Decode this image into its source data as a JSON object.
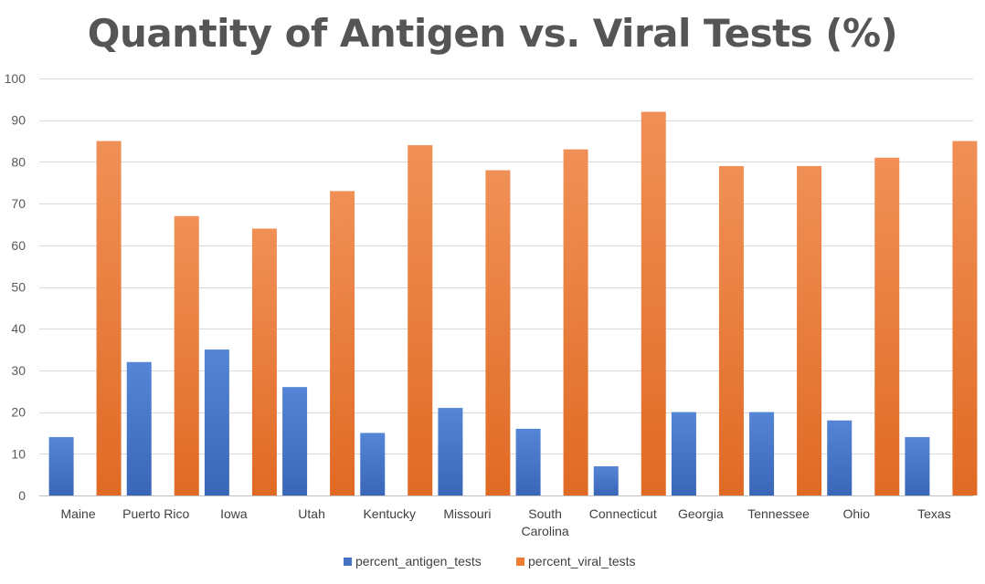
{
  "chart_data": {
    "type": "bar",
    "title": "Quantity of Antigen vs. Viral Tests (%)",
    "xlabel": "",
    "ylabel": "",
    "ylim": [
      0,
      100
    ],
    "yticks": [
      0,
      10,
      20,
      30,
      40,
      50,
      60,
      70,
      80,
      90,
      100
    ],
    "grid": true,
    "legend_position": "bottom",
    "categories": [
      [
        "Maine"
      ],
      [
        "Puerto Rico"
      ],
      [
        "Iowa"
      ],
      [
        "Utah"
      ],
      [
        "Kentucky"
      ],
      [
        "Missouri"
      ],
      [
        "South",
        "Carolina"
      ],
      [
        "Connecticut"
      ],
      [
        "Georgia"
      ],
      [
        "Tennessee"
      ],
      [
        "Ohio"
      ],
      [
        "Texas"
      ]
    ],
    "series": [
      {
        "name": "percent_antigen_tests",
        "color": "#4472C4",
        "values": [
          14,
          32,
          35,
          26,
          15,
          21,
          16,
          7,
          20,
          20,
          18,
          14
        ]
      },
      {
        "name": "percent_viral_tests",
        "color": "#ED7D31",
        "values": [
          85,
          67,
          64,
          73,
          84,
          78,
          83,
          92,
          79,
          79,
          81,
          85
        ]
      }
    ]
  }
}
